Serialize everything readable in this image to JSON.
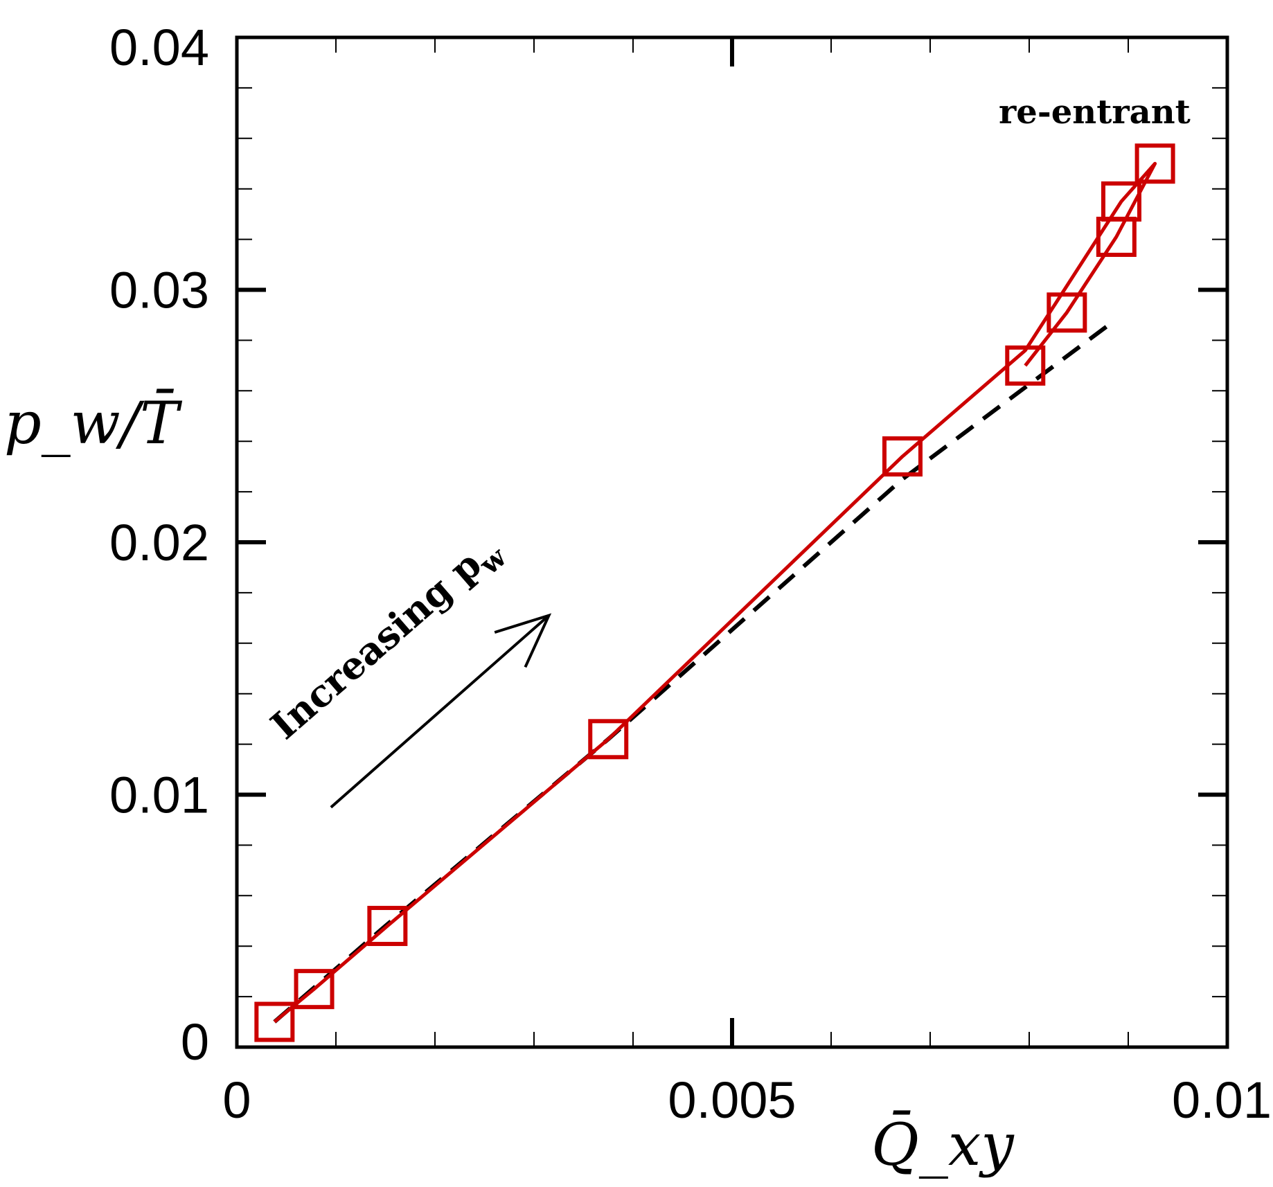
{
  "chart_data": {
    "type": "line",
    "title": "",
    "xlabel": "Q̄_xy",
    "ylabel": "p_w/T̄",
    "xlim": [
      0,
      0.01
    ],
    "ylim": [
      0,
      0.04
    ],
    "x_ticks": [
      {
        "value": 0,
        "label": "0"
      },
      {
        "value": 0.005,
        "label": "0.005"
      },
      {
        "value": 0.01,
        "label": "0.01"
      }
    ],
    "y_ticks": [
      {
        "value": 0,
        "label": "0"
      },
      {
        "value": 0.01,
        "label": "0.01"
      },
      {
        "value": 0.02,
        "label": "0.02"
      },
      {
        "value": 0.03,
        "label": "0.03"
      },
      {
        "value": 0.04,
        "label": "0.04"
      }
    ],
    "x_minor_step": 0.001,
    "y_minor_step": 0.002,
    "series": [
      {
        "name": "red squares (solid)",
        "color": "#cc0000",
        "style": "solid",
        "marker": "square",
        "points": [
          [
            0.00038,
            0.001
          ],
          [
            0.00078,
            0.0023
          ],
          [
            0.00152,
            0.0048
          ],
          [
            0.00375,
            0.0122
          ],
          [
            0.00672,
            0.0234
          ],
          [
            0.00796,
            0.027
          ],
          [
            0.00838,
            0.0291
          ],
          [
            0.00888,
            0.0321
          ],
          [
            0.00893,
            0.0335
          ],
          [
            0.00927,
            0.035
          ]
        ],
        "line_path": [
          [
            0.00038,
            0.001
          ],
          [
            0.00078,
            0.0023
          ],
          [
            0.00152,
            0.0048
          ],
          [
            0.00375,
            0.0122
          ],
          [
            0.00672,
            0.0234
          ],
          [
            0.00796,
            0.0276
          ],
          [
            0.00893,
            0.0335
          ],
          [
            0.00927,
            0.035
          ],
          [
            0.00888,
            0.0321
          ],
          [
            0.00838,
            0.0291
          ],
          [
            0.00796,
            0.027
          ]
        ]
      },
      {
        "name": "black dashed",
        "color": "#000000",
        "style": "dashed",
        "marker": "none",
        "points": [
          [
            0.00038,
            0.001
          ],
          [
            0.0015,
            0.0048
          ],
          [
            0.00375,
            0.0122
          ],
          [
            0.00672,
            0.0225
          ],
          [
            0.0088,
            0.0286
          ]
        ]
      }
    ],
    "annotations": {
      "increasing_label": "Increasing p",
      "increasing_subscript": "w",
      "reentrant_label": "re-entrant",
      "arrow_from": [
        0.00095,
        0.0095
      ],
      "arrow_to": [
        0.00315,
        0.0171
      ]
    }
  }
}
